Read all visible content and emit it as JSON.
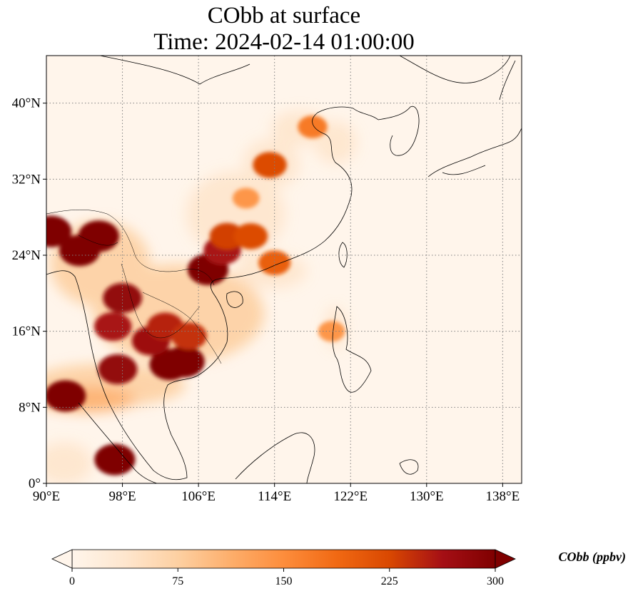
{
  "title": {
    "line1": "CObb at surface",
    "line2": "Time: 2024-02-14 01:00:00"
  },
  "map": {
    "lon_range": [
      90,
      140
    ],
    "lat_range": [
      0,
      45
    ],
    "lon_ticks": [
      {
        "value": 90,
        "label": "90°E"
      },
      {
        "value": 98,
        "label": "98°E"
      },
      {
        "value": 106,
        "label": "106°E"
      },
      {
        "value": 114,
        "label": "114°E"
      },
      {
        "value": 122,
        "label": "122°E"
      },
      {
        "value": 130,
        "label": "130°E"
      },
      {
        "value": 138,
        "label": "138°E"
      }
    ],
    "lat_ticks": [
      {
        "value": 0,
        "label": "0°"
      },
      {
        "value": 8,
        "label": "8°N"
      },
      {
        "value": 16,
        "label": "16°N"
      },
      {
        "value": 24,
        "label": "24°N"
      },
      {
        "value": 32,
        "label": "32°N"
      },
      {
        "value": 40,
        "label": "40°N"
      }
    ],
    "gridlines": true,
    "gridline_style": "dotted"
  },
  "colorbar": {
    "label": "CObb (ppbv)",
    "colormap": [
      "#fff5eb",
      "#fee6ce",
      "#fdd0a2",
      "#fdae6b",
      "#fd8d3c",
      "#f16913",
      "#d94801",
      "#a50f15",
      "#7f0000"
    ],
    "extend": "both",
    "ticks": [
      {
        "value": 0,
        "label": "0"
      },
      {
        "value": 75,
        "label": "75"
      },
      {
        "value": 150,
        "label": "150"
      },
      {
        "value": 225,
        "label": "225"
      },
      {
        "value": 300,
        "label": "300"
      }
    ],
    "range": [
      0,
      300
    ]
  },
  "field": {
    "hotspots": [
      {
        "lon": 104.5,
        "lat": 12.8,
        "value": 300
      },
      {
        "lon": 103.0,
        "lat": 12.5,
        "value": 300
      },
      {
        "lon": 101.0,
        "lat": 15.0,
        "value": 270
      },
      {
        "lon": 102.5,
        "lat": 16.5,
        "value": 250
      },
      {
        "lon": 105.0,
        "lat": 15.5,
        "value": 240
      },
      {
        "lon": 97.0,
        "lat": 16.5,
        "value": 260
      },
      {
        "lon": 98.0,
        "lat": 19.5,
        "value": 280
      },
      {
        "lon": 93.5,
        "lat": 24.5,
        "value": 300
      },
      {
        "lon": 95.5,
        "lat": 26.0,
        "value": 300
      },
      {
        "lon": 90.5,
        "lat": 26.5,
        "value": 300
      },
      {
        "lon": 107.0,
        "lat": 22.5,
        "value": 300
      },
      {
        "lon": 108.5,
        "lat": 24.5,
        "value": 260
      },
      {
        "lon": 109.0,
        "lat": 26.0,
        "value": 230
      },
      {
        "lon": 111.5,
        "lat": 26.0,
        "value": 220
      },
      {
        "lon": 92.0,
        "lat": 9.2,
        "value": 300
      },
      {
        "lon": 97.5,
        "lat": 12.0,
        "value": 280
      },
      {
        "lon": 97.2,
        "lat": 2.5,
        "value": 300
      },
      {
        "lon": 114.0,
        "lat": 23.2,
        "value": 200
      },
      {
        "lon": 113.5,
        "lat": 33.5,
        "value": 220
      },
      {
        "lon": 118.0,
        "lat": 37.5,
        "value": 170
      },
      {
        "lon": 111.0,
        "lat": 30.0,
        "value": 140
      },
      {
        "lon": 120.0,
        "lat": 16.0,
        "value": 140
      }
    ]
  }
}
